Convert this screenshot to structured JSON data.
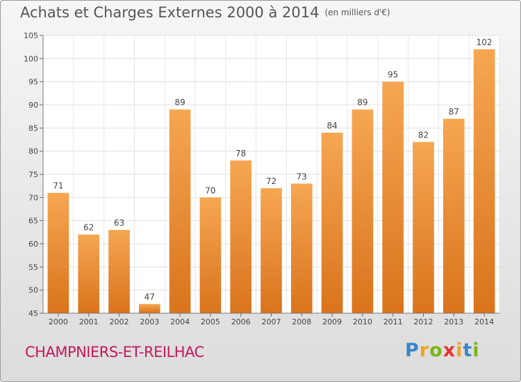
{
  "title": "Achats et Charges Externes 2000 à 2014",
  "subtitle": "(en milliers d'€)",
  "commune": "CHAMPNIERS-ET-REILHAC",
  "logo": {
    "letters": [
      "P",
      "r",
      "o",
      "x",
      "i",
      "t",
      "i"
    ],
    "colors": [
      "#3a86c8",
      "#f2a31b",
      "#7cb518",
      "#e8322d",
      "#f2a31b",
      "#3a86c8",
      "#7cb518"
    ]
  },
  "chart_data": {
    "type": "bar",
    "categories": [
      "2000",
      "2001",
      "2002",
      "2003",
      "2004",
      "2005",
      "2006",
      "2007",
      "2008",
      "2009",
      "2010",
      "2011",
      "2012",
      "2013",
      "2014"
    ],
    "values": [
      71,
      62,
      63,
      47,
      89,
      70,
      78,
      72,
      73,
      84,
      89,
      95,
      82,
      87,
      102
    ],
    "ylim": [
      45,
      105
    ],
    "yticks": [
      45,
      50,
      55,
      60,
      65,
      70,
      75,
      80,
      85,
      90,
      95,
      100,
      105
    ],
    "grid": true,
    "bar_color": "#f0993f"
  }
}
